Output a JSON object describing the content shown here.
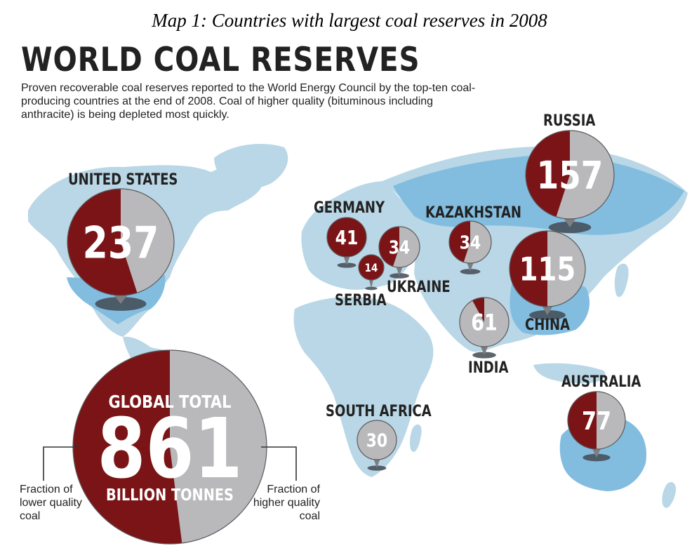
{
  "caption": "Map 1: Countries with largest coal reserves in 2008",
  "title": "WORLD COAL RESERVES",
  "subtitle": "Proven recoverable coal reserves reported to the World Energy Council by the top-ten coal-producing countries at the end of 2008. Coal of higher quality (bituminous including anthracite) is being depleted most quickly.",
  "colors": {
    "lower": "#7b1416",
    "higher": "#b9b9bb",
    "map": "#b9d7e6",
    "highlight": "#82bde0",
    "shadow": "#424a52"
  },
  "countries": [
    {
      "name": "UNITED STATES",
      "value": "237",
      "lower_fraction": 0.55
    },
    {
      "name": "RUSSIA",
      "value": "157",
      "lower_fraction": 0.45
    },
    {
      "name": "CHINA",
      "value": "115",
      "lower_fraction": 0.5
    },
    {
      "name": "AUSTRALIA",
      "value": "77",
      "lower_fraction": 0.5
    },
    {
      "name": "INDIA",
      "value": "61",
      "lower_fraction": 0.08
    },
    {
      "name": "GERMANY",
      "value": "41",
      "lower_fraction": 1.0
    },
    {
      "name": "UKRAINE",
      "value": "34",
      "lower_fraction": 0.45
    },
    {
      "name": "KAZAKHSTAN",
      "value": "34",
      "lower_fraction": 0.45
    },
    {
      "name": "SOUTH AFRICA",
      "value": "30",
      "lower_fraction": 0.0
    },
    {
      "name": "SERBIA",
      "value": "14",
      "lower_fraction": 1.0
    }
  ],
  "global": {
    "label_top": "GLOBAL TOTAL",
    "value": "861",
    "label_bottom": "BILLION TONNES",
    "lower_fraction": 0.52
  },
  "legend": {
    "lower": "Fraction of lower quality coal",
    "higher": "Fraction of higher quality coal"
  }
}
